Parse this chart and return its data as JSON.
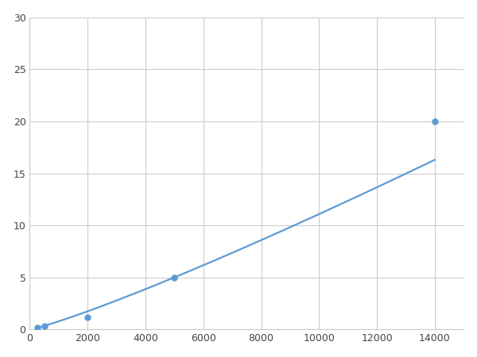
{
  "x_points": [
    250,
    500,
    2000,
    5000,
    14000
  ],
  "y_points": [
    0.2,
    0.35,
    1.2,
    5.0,
    20.0
  ],
  "xlim": [
    0,
    15000
  ],
  "ylim": [
    0,
    30
  ],
  "xticks": [
    0,
    2000,
    4000,
    6000,
    8000,
    10000,
    12000,
    14000
  ],
  "yticks": [
    0,
    5,
    10,
    15,
    20,
    25,
    30
  ],
  "line_color": "#5b9bd5",
  "marker_color": "#5b9bd5",
  "marker_size": 5,
  "line_width": 1.6,
  "grid_color": "#cccccc",
  "background_color": "#ffffff",
  "figsize": [
    6.0,
    4.5
  ],
  "dpi": 100
}
